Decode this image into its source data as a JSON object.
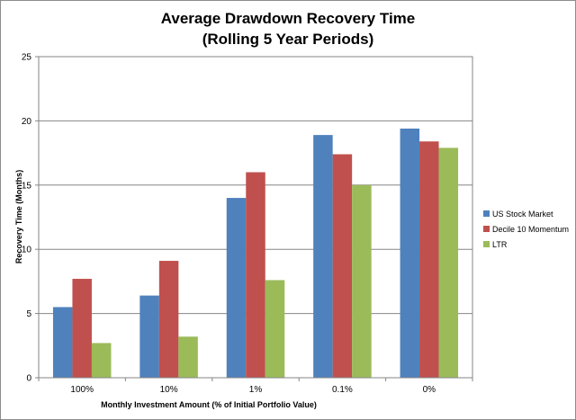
{
  "chart_data": {
    "type": "bar",
    "title": "Average Drawdown Recovery Time",
    "subtitle": "(Rolling 5 Year Periods)",
    "xlabel": "Monthly Investment Amount (% of Initial Portfolio Value)",
    "ylabel": "Recovery Time (Months)",
    "categories": [
      "100%",
      "10%",
      "1%",
      "0.1%",
      "0%"
    ],
    "ylim": [
      0,
      25
    ],
    "yticks": [
      "0",
      "5",
      "10",
      "15",
      "20",
      "25"
    ],
    "grid": true,
    "legend_position": "right",
    "series": [
      {
        "name": "US Stock Market",
        "color": "#4f81bd",
        "values": [
          5.5,
          6.4,
          14.0,
          18.9,
          19.4
        ]
      },
      {
        "name": "Decile 10 Momentum",
        "color": "#c0504d",
        "values": [
          7.7,
          9.1,
          16.0,
          17.4,
          18.4
        ]
      },
      {
        "name": "LTR",
        "color": "#9bbb59",
        "values": [
          2.7,
          3.2,
          7.6,
          15.0,
          17.9
        ]
      }
    ]
  }
}
